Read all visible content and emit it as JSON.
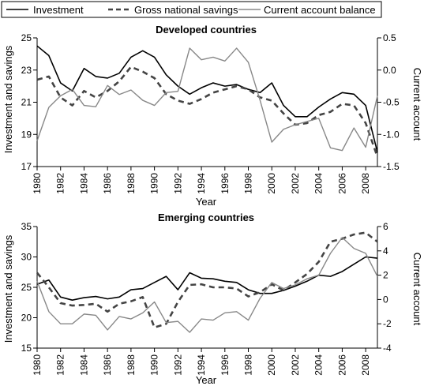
{
  "legend": [
    {
      "label": "Investment",
      "color": "#000000",
      "dash": "solid"
    },
    {
      "label": "Gross national savings",
      "color": "#444444",
      "dash": "dashed"
    },
    {
      "label": "Current account balance",
      "color": "#888888",
      "dash": "solid"
    }
  ],
  "chart_data": [
    {
      "type": "line",
      "title": "Developed countries",
      "xlabel": "Year",
      "ylabel": "Investment and savings",
      "y2label": "Current account",
      "xlim": [
        1980,
        2009
      ],
      "ylim": [
        17,
        25
      ],
      "y2lim": [
        -1.5,
        0.5
      ],
      "xticks": [
        1980,
        1982,
        1984,
        1986,
        1988,
        1990,
        1992,
        1994,
        1996,
        1998,
        2000,
        2002,
        2004,
        2006,
        2008
      ],
      "yticks": [
        17,
        19,
        21,
        23,
        25
      ],
      "y2ticks": [
        -1.5,
        -1.0,
        -0.5,
        0.0,
        0.5
      ],
      "y2tick_labels": [
        "-1.5",
        "-1.0",
        "-0.5",
        "0.0",
        "0.5"
      ],
      "x": [
        1980,
        1981,
        1982,
        1983,
        1984,
        1985,
        1986,
        1987,
        1988,
        1989,
        1990,
        1991,
        1992,
        1993,
        1994,
        1995,
        1996,
        1997,
        1998,
        1999,
        2000,
        2001,
        2002,
        2003,
        2004,
        2005,
        2006,
        2007,
        2008,
        2009
      ],
      "series": [
        {
          "name": "Investment",
          "axis": "left",
          "values": [
            24.5,
            23.9,
            22.2,
            21.7,
            23.1,
            22.6,
            22.5,
            22.8,
            23.8,
            24.2,
            23.8,
            22.7,
            22.0,
            21.5,
            21.9,
            22.2,
            22.0,
            22.1,
            21.8,
            21.6,
            22.2,
            20.8,
            20.1,
            20.1,
            20.7,
            21.2,
            21.6,
            21.5,
            20.8,
            17.9
          ]
        },
        {
          "name": "Gross national savings",
          "axis": "left",
          "values": [
            22.4,
            22.6,
            21.3,
            20.8,
            21.7,
            21.3,
            21.7,
            22.3,
            23.2,
            22.9,
            22.5,
            21.5,
            21.1,
            20.9,
            21.2,
            21.6,
            21.8,
            22.0,
            21.8,
            21.3,
            21.1,
            20.3,
            19.6,
            19.7,
            20.2,
            20.4,
            20.9,
            20.8,
            19.7,
            17.6
          ]
        },
        {
          "name": "Current account balance",
          "axis": "right",
          "values": [
            -1.1,
            -0.58,
            -0.4,
            -0.3,
            -0.55,
            -0.57,
            -0.24,
            -0.38,
            -0.31,
            -0.47,
            -0.55,
            -0.35,
            -0.33,
            0.34,
            0.16,
            0.2,
            0.14,
            0.34,
            0.12,
            -0.47,
            -1.12,
            -0.92,
            -0.85,
            -0.8,
            -0.75,
            -1.21,
            -1.25,
            -0.9,
            -1.2,
            -0.4
          ]
        }
      ]
    },
    {
      "type": "line",
      "title": "Emerging countries",
      "xlabel": "Year",
      "ylabel": "Investment and savings",
      "y2label": "Current account",
      "xlim": [
        1980,
        2009
      ],
      "ylim": [
        15,
        35
      ],
      "y2lim": [
        -4,
        6
      ],
      "xticks": [
        1980,
        1982,
        1984,
        1986,
        1988,
        1990,
        1992,
        1994,
        1996,
        1998,
        2000,
        2002,
        2004,
        2006,
        2008
      ],
      "yticks": [
        15,
        20,
        25,
        30,
        35
      ],
      "y2ticks": [
        -4,
        -2,
        0,
        2,
        4,
        6
      ],
      "y2tick_labels": [
        "-4",
        "-2",
        "0",
        "2",
        "4",
        "6"
      ],
      "x": [
        1980,
        1981,
        1982,
        1983,
        1984,
        1985,
        1986,
        1987,
        1988,
        1989,
        1990,
        1991,
        1992,
        1993,
        1994,
        1995,
        1996,
        1997,
        1998,
        1999,
        2000,
        2001,
        2002,
        2003,
        2004,
        2005,
        2006,
        2007,
        2008,
        2009
      ],
      "series": [
        {
          "name": "Investment",
          "axis": "left",
          "values": [
            25.5,
            26.2,
            23.4,
            22.9,
            23.3,
            23.5,
            23.1,
            23.4,
            24.6,
            24.8,
            25.8,
            26.8,
            24.6,
            27.4,
            26.5,
            26.4,
            26.0,
            25.8,
            24.6,
            24.0,
            24.0,
            24.5,
            25.2,
            26.0,
            27.0,
            26.8,
            27.6,
            28.8,
            30.0,
            29.8
          ]
        },
        {
          "name": "Gross national savings",
          "axis": "left",
          "values": [
            27.4,
            25.0,
            22.4,
            22.0,
            22.1,
            22.3,
            21.0,
            22.3,
            22.7,
            23.4,
            18.4,
            19.0,
            22.6,
            25.4,
            25.5,
            25.0,
            25.0,
            24.8,
            23.5,
            24.2,
            25.5,
            24.5,
            25.8,
            27.2,
            29.2,
            32.5,
            33.0,
            33.7,
            34.0,
            32.5
          ]
        },
        {
          "name": "Current account balance",
          "axis": "right",
          "values": [
            1.5,
            -1.0,
            -2.0,
            -2.0,
            -1.2,
            -1.3,
            -2.5,
            -1.4,
            -1.6,
            -1.1,
            -0.2,
            -1.9,
            -1.8,
            -2.7,
            -1.6,
            -1.7,
            -1.1,
            -1.0,
            -1.7,
            0.1,
            1.4,
            0.9,
            1.2,
            1.7,
            2.0,
            3.8,
            5.1,
            4.2,
            3.8,
            1.9
          ]
        }
      ]
    }
  ]
}
